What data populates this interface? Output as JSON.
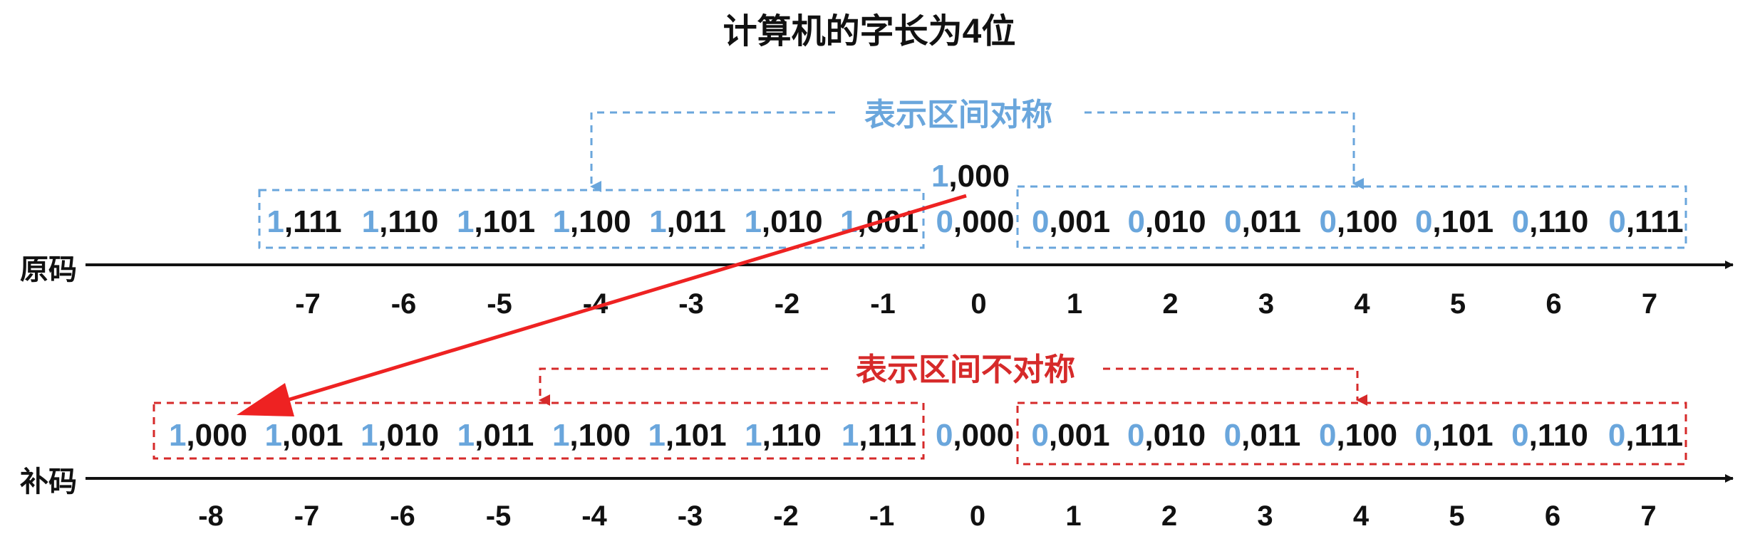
{
  "title": "计算机的字长为4位",
  "colors": {
    "sign_bit": "#6aa6dc",
    "text": "#111111",
    "blue_box": "#6aa6dc",
    "red_box": "#d62a2a",
    "arrow": "#ee2222"
  },
  "sign_magnitude": {
    "label": "原码",
    "caption": "表示区间对称",
    "ticks": [
      "-7",
      "-6",
      "-5",
      "-4",
      "-3",
      "-2",
      "-1",
      "0",
      "1",
      "2",
      "3",
      "4",
      "5",
      "6",
      "7"
    ],
    "codes": [
      {
        "sign": "1",
        "rest": ",111"
      },
      {
        "sign": "1",
        "rest": ",110"
      },
      {
        "sign": "1",
        "rest": ",101"
      },
      {
        "sign": "1",
        "rest": ",100"
      },
      {
        "sign": "1",
        "rest": ",011"
      },
      {
        "sign": "1",
        "rest": ",010"
      },
      {
        "sign": "1",
        "rest": ",001"
      },
      {
        "sign": "0",
        "rest": ",000"
      },
      {
        "sign": "0",
        "rest": ",001"
      },
      {
        "sign": "0",
        "rest": ",010"
      },
      {
        "sign": "0",
        "rest": ",011"
      },
      {
        "sign": "0",
        "rest": ",100"
      },
      {
        "sign": "0",
        "rest": ",101"
      },
      {
        "sign": "0",
        "rest": ",110"
      },
      {
        "sign": "0",
        "rest": ",111"
      }
    ],
    "negative_zero": {
      "sign": "1",
      "rest": ",000"
    }
  },
  "twos_complement": {
    "label": "补码",
    "caption": "表示区间不对称",
    "ticks": [
      "-8",
      "-7",
      "-6",
      "-5",
      "-4",
      "-3",
      "-2",
      "-1",
      "0",
      "1",
      "2",
      "3",
      "4",
      "5",
      "6",
      "7"
    ],
    "codes": [
      {
        "sign": "1",
        "rest": ",000"
      },
      {
        "sign": "1",
        "rest": ",001"
      },
      {
        "sign": "1",
        "rest": ",010"
      },
      {
        "sign": "1",
        "rest": ",011"
      },
      {
        "sign": "1",
        "rest": ",100"
      },
      {
        "sign": "1",
        "rest": ",101"
      },
      {
        "sign": "1",
        "rest": ",110"
      },
      {
        "sign": "1",
        "rest": ",111"
      },
      {
        "sign": "0",
        "rest": ",000"
      },
      {
        "sign": "0",
        "rest": ",001"
      },
      {
        "sign": "0",
        "rest": ",010"
      },
      {
        "sign": "0",
        "rest": ",011"
      },
      {
        "sign": "0",
        "rest": ",100"
      },
      {
        "sign": "0",
        "rest": ",101"
      },
      {
        "sign": "0",
        "rest": ",110"
      },
      {
        "sign": "0",
        "rest": ",111"
      }
    ]
  }
}
